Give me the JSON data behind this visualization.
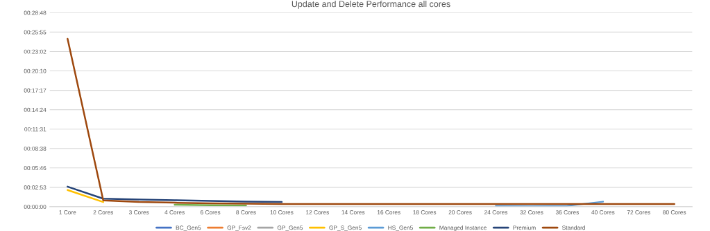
{
  "chart_data": {
    "type": "line",
    "title": "Update and Delete Performance all cores",
    "categories": [
      "1 Core",
      "2 Cores",
      "3 Cores",
      "4 Cores",
      "6 Cores",
      "8 Cores",
      "10 Cores",
      "12 Cores",
      "14 Cores",
      "16 Cores",
      "18 Cores",
      "20 Cores",
      "24 Cores",
      "32 Cores",
      "36 Cores",
      "40 Cores",
      "72 Cores",
      "80 Cores"
    ],
    "series": [
      {
        "name": "BC_Gen5",
        "color": "#4472c4",
        "values": [
          null,
          null,
          null,
          null,
          null,
          null,
          null,
          null,
          null,
          null,
          null,
          null,
          null,
          null,
          null,
          null,
          null,
          null
        ]
      },
      {
        "name": "GP_Fsv2",
        "color": "#ed7d31",
        "values": [
          null,
          null,
          null,
          null,
          null,
          null,
          null,
          null,
          null,
          null,
          null,
          null,
          null,
          null,
          null,
          null,
          null,
          null
        ]
      },
      {
        "name": "GP_Gen5",
        "color": "#a5a5a5",
        "values": [
          null,
          null,
          null,
          null,
          null,
          null,
          null,
          null,
          null,
          null,
          null,
          null,
          null,
          null,
          null,
          null,
          null,
          null
        ]
      },
      {
        "name": "GP_S_Gen5",
        "color": "#ffc000",
        "values": [
          149,
          42,
          null,
          null,
          null,
          null,
          null,
          null,
          null,
          null,
          null,
          null,
          null,
          null,
          null,
          null,
          null,
          null
        ]
      },
      {
        "name": "HS_Gen5",
        "color": "#5b9bd5",
        "values": [
          null,
          null,
          null,
          null,
          null,
          null,
          null,
          null,
          null,
          null,
          null,
          null,
          8,
          4,
          8,
          45,
          null,
          null
        ]
      },
      {
        "name": "Managed Instance",
        "color": "#70ad47",
        "values": [
          null,
          null,
          null,
          18,
          14,
          10,
          null,
          null,
          null,
          null,
          null,
          null,
          null,
          null,
          null,
          null,
          null,
          null
        ]
      },
      {
        "name": "Premium",
        "color": "#264478",
        "values": [
          179,
          72,
          64,
          58,
          52,
          46,
          42,
          null,
          null,
          null,
          null,
          null,
          null,
          null,
          null,
          null,
          null,
          null
        ]
      },
      {
        "name": "Standard",
        "color": "#9e480e",
        "values": [
          1496,
          57,
          42,
          36,
          30,
          27,
          24,
          24,
          24,
          24,
          24,
          24,
          24,
          24,
          24,
          24,
          24,
          24
        ]
      }
    ],
    "ylim": [
      0,
      1728
    ],
    "yticks": [
      {
        "value": 0,
        "label": "00:00:00"
      },
      {
        "value": 172.8,
        "label": "00:02:53"
      },
      {
        "value": 345.6,
        "label": "00:05:46"
      },
      {
        "value": 518.4,
        "label": "00:08:38"
      },
      {
        "value": 691.2,
        "label": "00:11:31"
      },
      {
        "value": 864,
        "label": "00:14:24"
      },
      {
        "value": 1036.8,
        "label": "00:17:17"
      },
      {
        "value": 1209.6,
        "label": "00:20:10"
      },
      {
        "value": 1382.4,
        "label": "00:23:02"
      },
      {
        "value": 1555.2,
        "label": "00:25:55"
      },
      {
        "value": 1728,
        "label": "00:28:48"
      }
    ],
    "grid": "y",
    "legend": "bottom",
    "marker": "none"
  }
}
